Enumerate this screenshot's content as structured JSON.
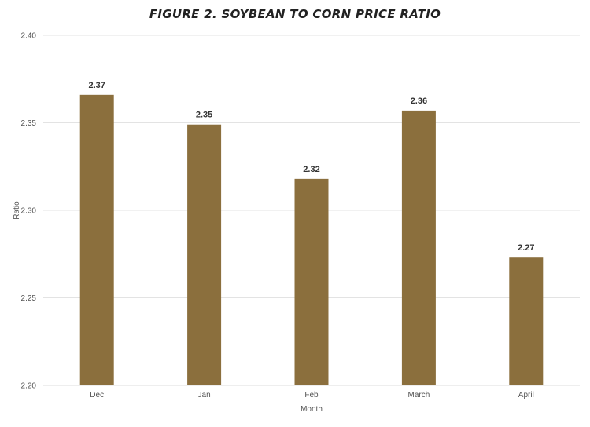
{
  "chart_data": {
    "type": "bar",
    "title": "FIGURE 2. SOYBEAN TO CORN PRICE RATIO",
    "xlabel": "Month",
    "ylabel": "Ratio",
    "categories": [
      "Dec",
      "Jan",
      "Feb",
      "March",
      "April"
    ],
    "values": [
      2.366,
      2.349,
      2.318,
      2.357,
      2.273
    ],
    "data_labels": [
      "2.37",
      "2.35",
      "2.32",
      "2.36",
      "2.27"
    ],
    "y_ticks": [
      "2.20",
      "2.25",
      "2.30",
      "2.35",
      "2.40"
    ],
    "ylim": [
      2.2,
      2.4
    ],
    "grid": true,
    "legend": "none",
    "bar_color": "#8b6f3d",
    "grid_color": "#e3e3e3"
  }
}
